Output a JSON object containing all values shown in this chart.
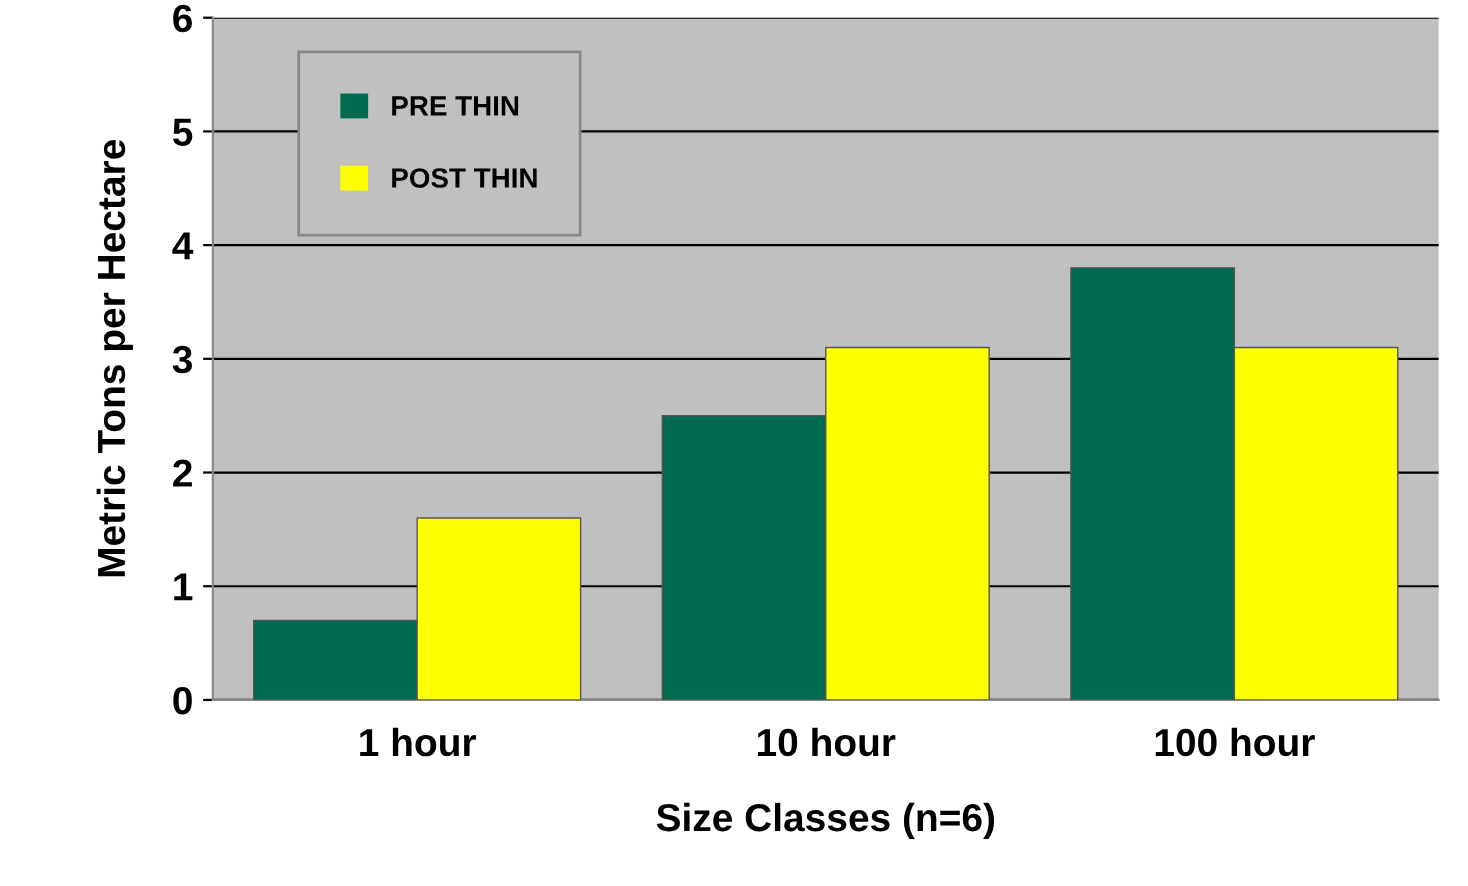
{
  "chart_data": {
    "type": "bar",
    "xlabel": "Size Classes (n=6)",
    "ylabel": "Metric Tons per Hectare",
    "categories": [
      "1 hour",
      "10 hour",
      "100 hour"
    ],
    "series": [
      {
        "name": "PRE THIN",
        "color": "#006b4f",
        "values": [
          0.7,
          2.5,
          3.8
        ]
      },
      {
        "name": "POST THIN",
        "color": "#ffff00",
        "values": [
          1.6,
          3.1,
          3.1
        ]
      }
    ],
    "ylim": [
      0,
      6
    ],
    "yticks": [
      0,
      1,
      2,
      3,
      4,
      5,
      6
    ],
    "grid": "y",
    "legend": "top left"
  }
}
